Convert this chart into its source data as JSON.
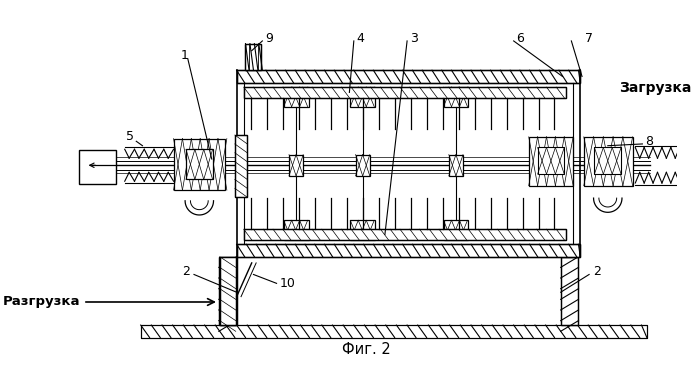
{
  "title": "Фиг. 2",
  "label_zagruzka": "Загрузка",
  "label_razgruzka": "Разгрузка",
  "bg_color": "#ffffff",
  "fig_w": 699,
  "fig_h": 382
}
